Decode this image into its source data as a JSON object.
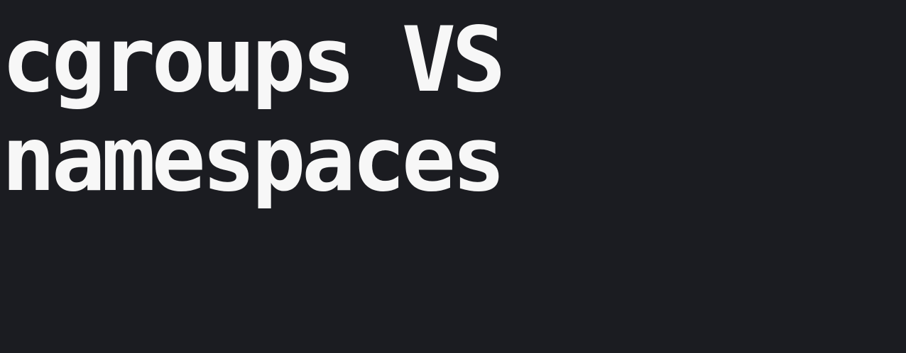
{
  "title": {
    "line1": "cgroups VS",
    "line2": "namespaces"
  },
  "colors": {
    "background": "#1b1c21",
    "text": "#f7f7f7"
  }
}
